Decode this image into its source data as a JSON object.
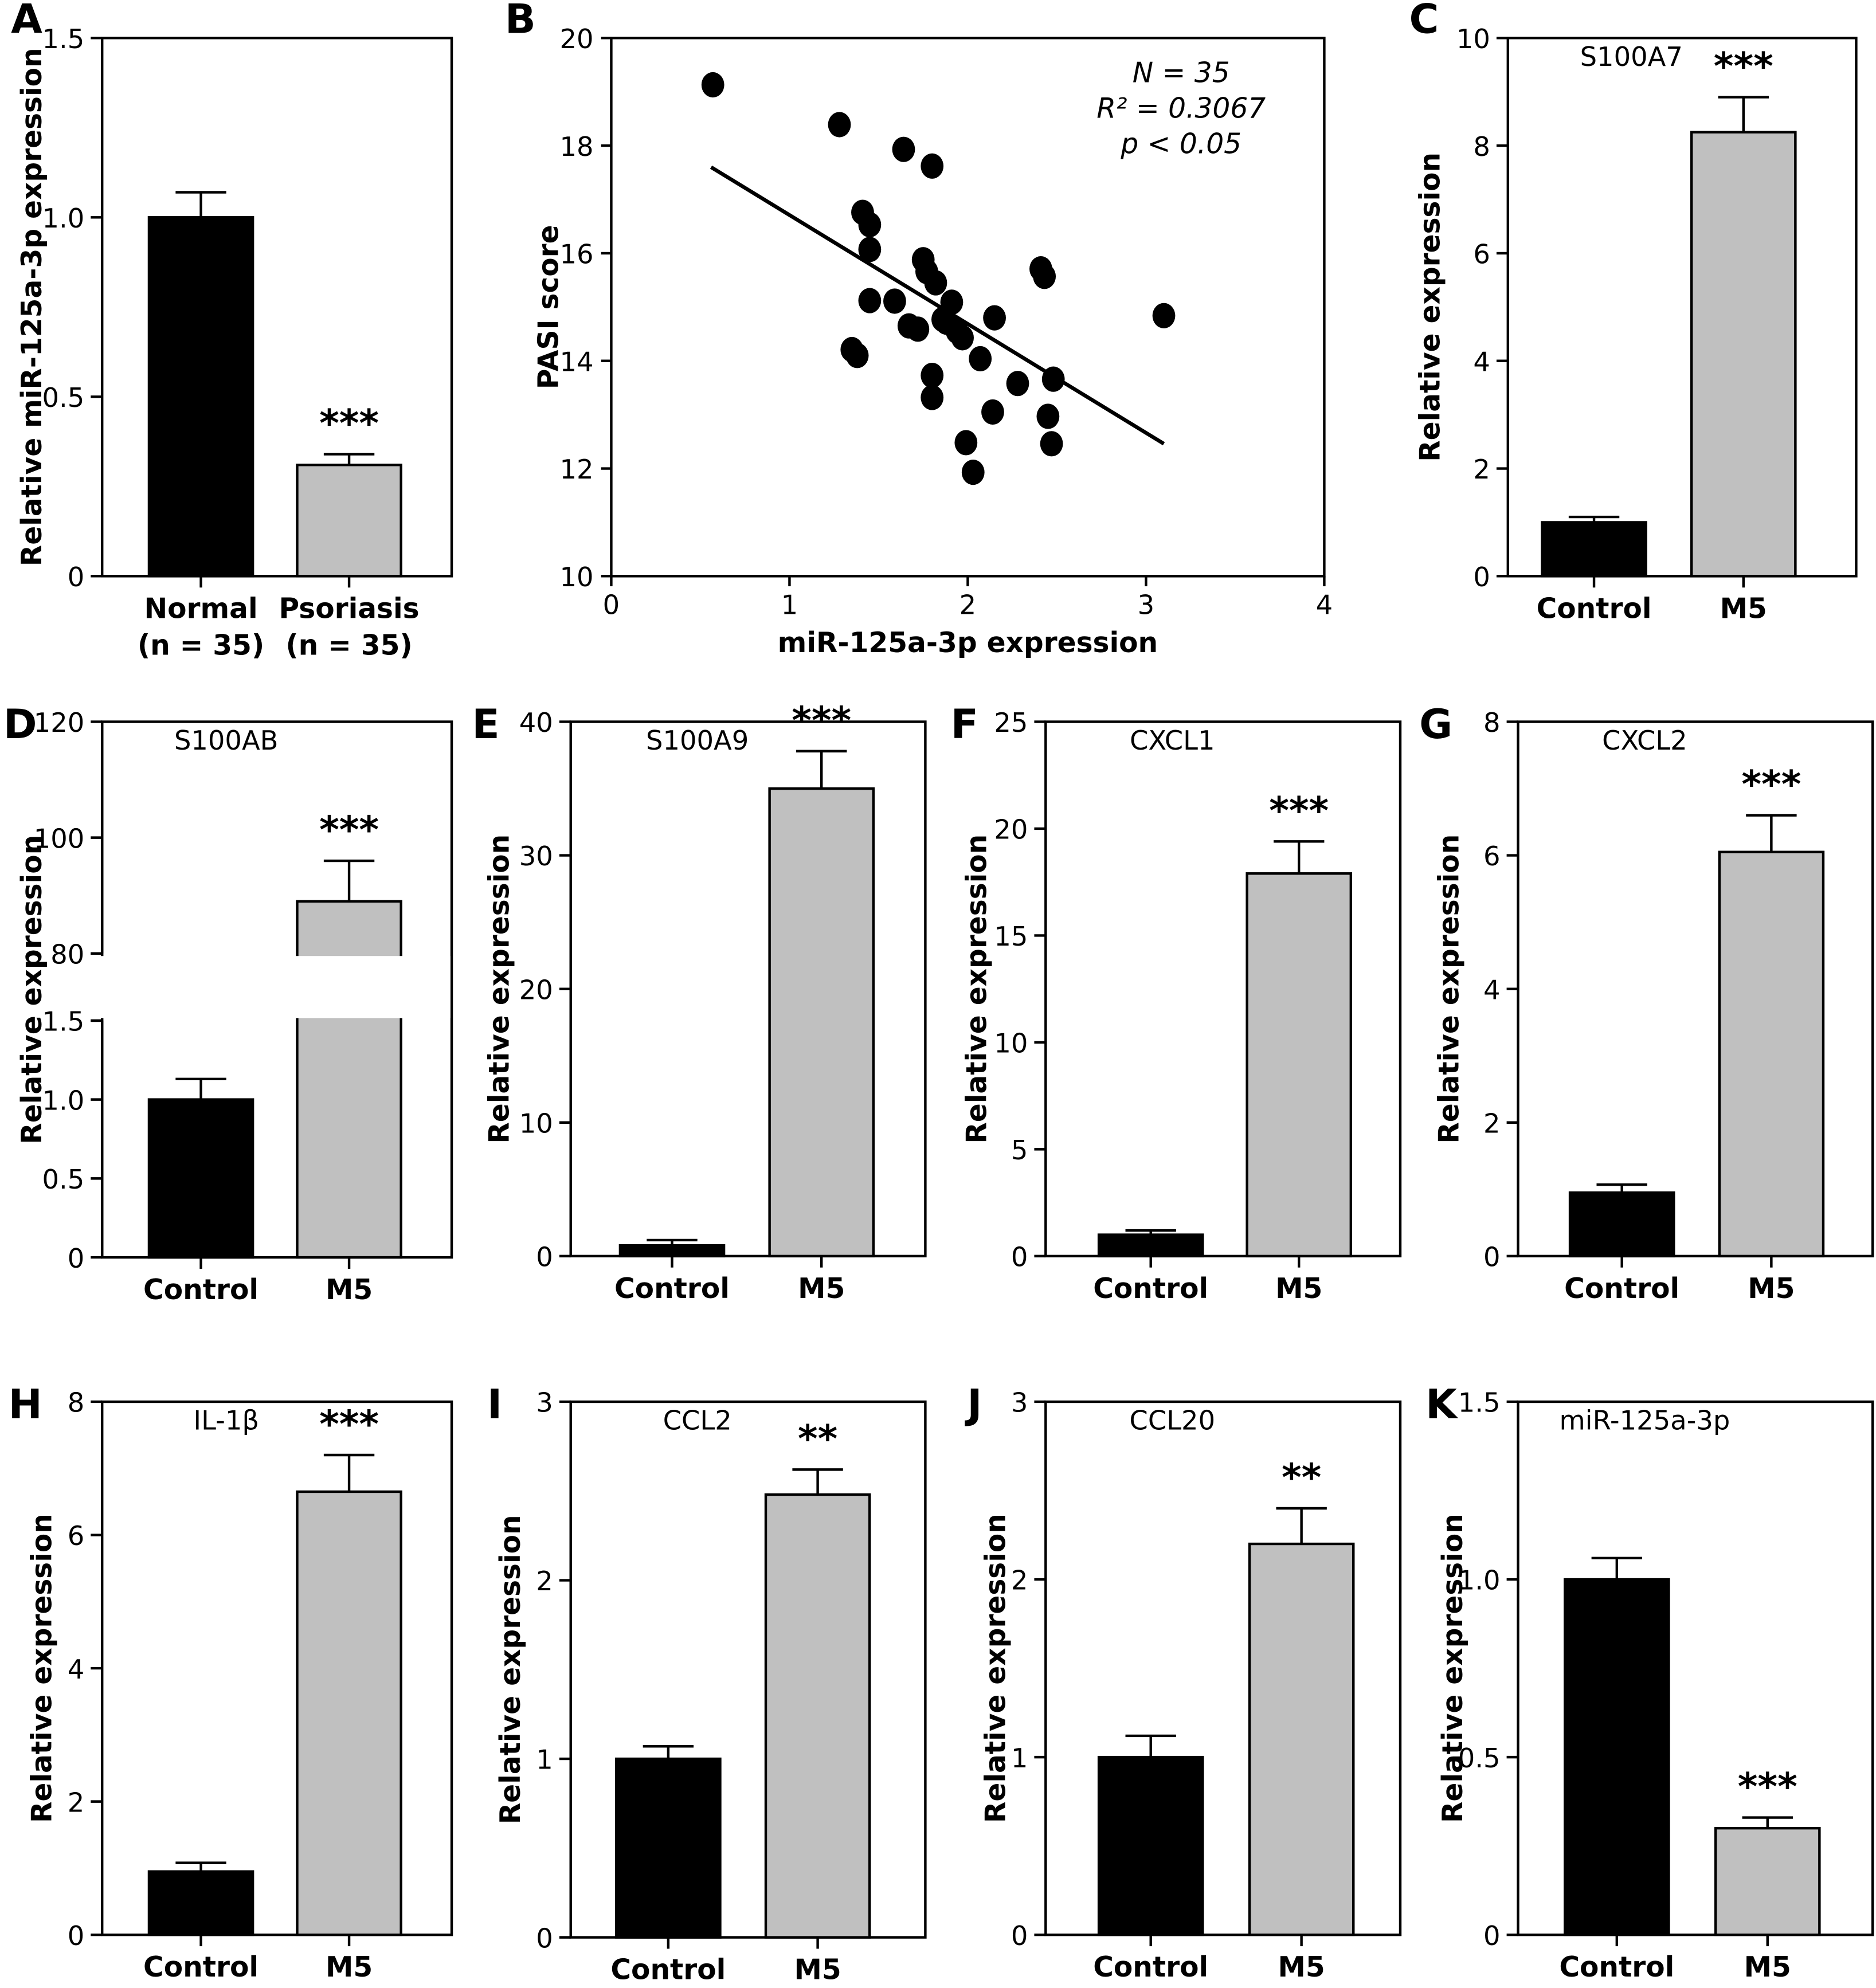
{
  "chart_data": [
    {
      "panel": "A",
      "type": "bar",
      "title": "",
      "ylabel": "Relative miR-125a-3p expression",
      "ylim": [
        0,
        1.5
      ],
      "yticks": [
        "0",
        "0.5",
        "1.0",
        "1.5"
      ],
      "categories": [
        "Normal",
        "Psoriasis"
      ],
      "category_sublabels": [
        "(n = 35)",
        "(n = 35)"
      ],
      "values": [
        1.0,
        0.31
      ],
      "errors": [
        0.07,
        0.03
      ],
      "significance": [
        "",
        "***"
      ],
      "colors": [
        "#000000",
        "#c0c0c0"
      ]
    },
    {
      "panel": "B",
      "type": "scatter",
      "xlabel": "miR-125a-3p expression",
      "ylabel": "PASI score",
      "xlim": [
        0,
        4
      ],
      "ylim": [
        10,
        20
      ],
      "xticks": [
        "0",
        "1",
        "2",
        "3",
        "4"
      ],
      "yticks": [
        "10",
        "12",
        "14",
        "16",
        "18",
        "20"
      ],
      "annotations": [
        "N = 35",
        "R² = 0.3067",
        "p < 0.05"
      ],
      "points": [
        [
          0.57,
          19.13
        ],
        [
          1.28,
          18.39
        ],
        [
          1.64,
          17.93
        ],
        [
          1.8,
          17.62
        ],
        [
          1.41,
          16.76
        ],
        [
          1.45,
          16.53
        ],
        [
          1.45,
          16.07
        ],
        [
          1.75,
          15.88
        ],
        [
          1.77,
          15.66
        ],
        [
          1.82,
          15.45
        ],
        [
          2.41,
          15.71
        ],
        [
          2.43,
          15.57
        ],
        [
          1.45,
          15.12
        ],
        [
          1.59,
          15.11
        ],
        [
          1.91,
          15.09
        ],
        [
          1.86,
          14.77
        ],
        [
          1.88,
          14.72
        ],
        [
          2.15,
          14.8
        ],
        [
          3.1,
          14.84
        ],
        [
          1.67,
          14.65
        ],
        [
          1.72,
          14.59
        ],
        [
          1.94,
          14.55
        ],
        [
          1.97,
          14.43
        ],
        [
          1.35,
          14.21
        ],
        [
          1.38,
          14.1
        ],
        [
          2.07,
          14.04
        ],
        [
          1.8,
          13.73
        ],
        [
          2.28,
          13.58
        ],
        [
          2.48,
          13.66
        ],
        [
          1.8,
          13.32
        ],
        [
          2.14,
          13.05
        ],
        [
          2.45,
          12.97
        ],
        [
          1.99,
          12.48
        ],
        [
          2.47,
          12.46
        ],
        [
          2.03,
          11.93
        ]
      ],
      "fit_line": [
        [
          0.56,
          17.6
        ],
        [
          3.1,
          12.46
        ]
      ]
    },
    {
      "panel": "C",
      "type": "bar",
      "title": "S100A7",
      "ylabel": "Relative expression",
      "ylim": [
        0,
        10
      ],
      "yticks": [
        "0",
        "2",
        "4",
        "6",
        "8",
        "10"
      ],
      "categories": [
        "Control",
        "M5"
      ],
      "values": [
        1.0,
        8.25
      ],
      "errors": [
        0.1,
        0.65
      ],
      "significance": [
        "",
        "***"
      ],
      "colors": [
        "#000000",
        "#c0c0c0"
      ]
    },
    {
      "panel": "D",
      "type": "bar",
      "title": "S100AB",
      "ylabel": "Relative expression",
      "ylim": [
        0,
        120
      ],
      "axis_break": [
        1.5,
        80
      ],
      "yticks": [
        "0",
        "0.5",
        "1.0",
        "1.5",
        "80",
        "100",
        "120"
      ],
      "categories": [
        "Control",
        "M5"
      ],
      "values": [
        1.0,
        89
      ],
      "errors": [
        0.13,
        7
      ],
      "significance": [
        "",
        "***"
      ],
      "colors": [
        "#000000",
        "#c0c0c0"
      ]
    },
    {
      "panel": "E",
      "type": "bar",
      "title": "S100A9",
      "ylabel": "Relative expression",
      "ylim": [
        0,
        40
      ],
      "yticks": [
        "0",
        "10",
        "20",
        "30",
        "40"
      ],
      "categories": [
        "Control",
        "M5"
      ],
      "values": [
        0.8,
        35
      ],
      "errors": [
        0.4,
        2.8
      ],
      "significance": [
        "",
        "***"
      ],
      "colors": [
        "#000000",
        "#c0c0c0"
      ]
    },
    {
      "panel": "F",
      "type": "bar",
      "title": "CXCL1",
      "ylabel": "Relative expression",
      "ylim": [
        0,
        25
      ],
      "yticks": [
        "0",
        "5",
        "10",
        "15",
        "20",
        "25"
      ],
      "categories": [
        "Control",
        "M5"
      ],
      "values": [
        1.0,
        17.9
      ],
      "errors": [
        0.2,
        1.5
      ],
      "significance": [
        "",
        "***"
      ],
      "colors": [
        "#000000",
        "#c0c0c0"
      ]
    },
    {
      "panel": "G",
      "type": "bar",
      "title": "CXCL2",
      "ylabel": "Relative expression",
      "ylim": [
        0,
        8
      ],
      "yticks": [
        "0",
        "2",
        "4",
        "6",
        "8"
      ],
      "categories": [
        "Control",
        "M5"
      ],
      "values": [
        0.95,
        6.05
      ],
      "errors": [
        0.12,
        0.55
      ],
      "significance": [
        "",
        "***"
      ],
      "colors": [
        "#000000",
        "#c0c0c0"
      ]
    },
    {
      "panel": "H",
      "type": "bar",
      "title": "IL-1β",
      "ylabel": "Relative expression",
      "ylim": [
        0,
        8
      ],
      "yticks": [
        "0",
        "2",
        "4",
        "6",
        "8"
      ],
      "categories": [
        "Control",
        "M5"
      ],
      "values": [
        0.95,
        6.65
      ],
      "errors": [
        0.13,
        0.55
      ],
      "significance": [
        "",
        "***"
      ],
      "colors": [
        "#000000",
        "#c0c0c0"
      ]
    },
    {
      "panel": "I",
      "type": "bar",
      "title": "CCL2",
      "ylabel": "Relative expression",
      "ylim": [
        0,
        3
      ],
      "yticks": [
        "0",
        "1",
        "2",
        "3"
      ],
      "categories": [
        "Control",
        "M5"
      ],
      "values": [
        1.0,
        2.48
      ],
      "errors": [
        0.07,
        0.14
      ],
      "significance": [
        "",
        "**"
      ],
      "colors": [
        "#000000",
        "#c0c0c0"
      ]
    },
    {
      "panel": "J",
      "type": "bar",
      "title": "CCL20",
      "ylabel": "Relative expression",
      "ylim": [
        0,
        3
      ],
      "yticks": [
        "0",
        "1",
        "2",
        "3"
      ],
      "categories": [
        "Control",
        "M5"
      ],
      "values": [
        1.0,
        2.2
      ],
      "errors": [
        0.12,
        0.2
      ],
      "significance": [
        "",
        "**"
      ],
      "colors": [
        "#000000",
        "#c0c0c0"
      ]
    },
    {
      "panel": "K",
      "type": "bar",
      "title": "miR-125a-3p",
      "ylabel": "Relative expression",
      "ylim": [
        0,
        1.5
      ],
      "yticks": [
        "0",
        "0.5",
        "1.0",
        "1.5"
      ],
      "categories": [
        "Control",
        "M5"
      ],
      "values": [
        1.0,
        0.3
      ],
      "errors": [
        0.06,
        0.03
      ],
      "significance": [
        "",
        "***"
      ],
      "colors": [
        "#000000",
        "#c0c0c0"
      ]
    }
  ]
}
